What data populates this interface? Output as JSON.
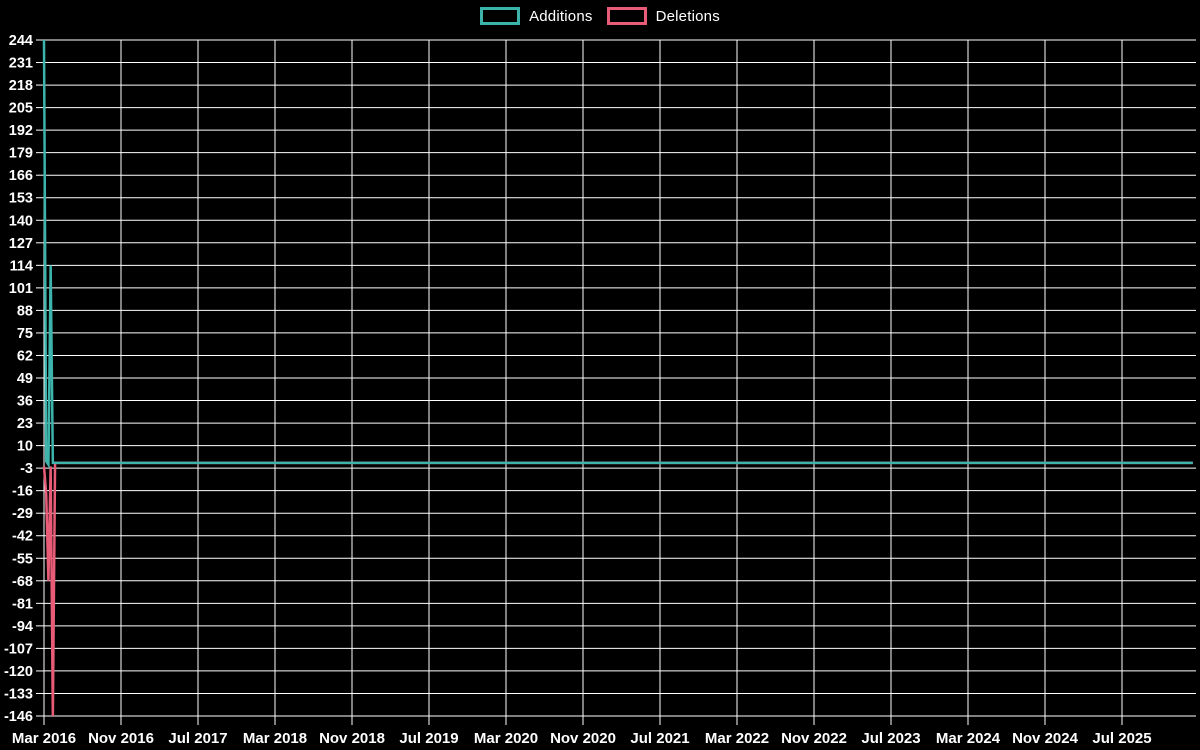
{
  "page": {
    "background": "#000000"
  },
  "chart_data": {
    "type": "line",
    "title": "",
    "xlabel": "",
    "ylabel": "",
    "x_unit": "weeks since first data point (Mar 2016)",
    "ylim": [
      -146,
      244
    ],
    "y_tick_step": 13,
    "grid": true,
    "legend_position": "top-center",
    "background_color": "#000000",
    "grid_color": "#ffffff",
    "text_color": "#ffffff",
    "legend": [
      {
        "name": "Additions",
        "color": "#3cb4ac"
      },
      {
        "name": "Deletions",
        "color": "#e85c78"
      }
    ],
    "x_ticks": [
      "Mar 2016",
      "Nov 2016",
      "Jul 2017",
      "Mar 2018",
      "Nov 2018",
      "Jul 2019",
      "Mar 2020",
      "Nov 2020",
      "Jul 2021",
      "Mar 2022",
      "Nov 2022",
      "Jul 2023",
      "Mar 2024",
      "Nov 2024",
      "Jul 2025"
    ],
    "x_tick_interval_months": 8,
    "y_ticks": [
      244,
      231,
      218,
      205,
      192,
      179,
      166,
      153,
      140,
      127,
      114,
      101,
      88,
      75,
      62,
      49,
      36,
      23,
      10,
      -3,
      -16,
      -29,
      -42,
      -55,
      -68,
      -81,
      -94,
      -107,
      -120,
      -133,
      -146
    ],
    "series": [
      {
        "name": "Additions",
        "color": "#3cb4ac",
        "points": [
          [
            0,
            244
          ],
          [
            1,
            1
          ],
          [
            2,
            -1
          ],
          [
            3,
            114
          ],
          [
            4,
            0
          ],
          [
            5,
            0
          ],
          [
            519,
            0
          ]
        ]
      },
      {
        "name": "Deletions",
        "color": "#e85c78",
        "points": [
          [
            0,
            -2
          ],
          [
            1,
            -18
          ],
          [
            2,
            -68
          ],
          [
            3,
            -2
          ],
          [
            4,
            -146
          ],
          [
            5,
            0
          ],
          [
            519,
            0
          ]
        ]
      }
    ]
  }
}
